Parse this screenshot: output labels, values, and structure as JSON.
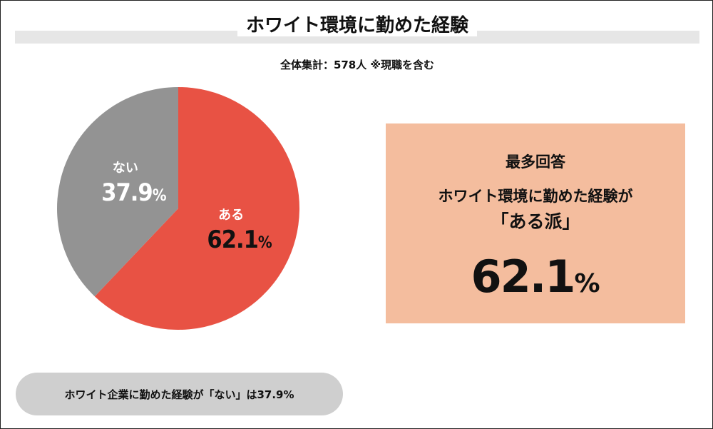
{
  "title": "ホワイト環境に勤めた経験",
  "subtitle": "全体集計：578人 ※現職を含む",
  "chart_data": {
    "type": "pie",
    "slices": [
      {
        "label": "ある",
        "value": 62.1,
        "display": "62.1",
        "unit": "%",
        "color": "#e85244"
      },
      {
        "label": "ない",
        "value": 37.9,
        "display": "37.9",
        "unit": "%",
        "color": "#939393"
      }
    ],
    "start": "top, clockwise"
  },
  "highlight": {
    "heading": "最多回答",
    "line1": "ホワイト環境に勤めた経験が",
    "line2": "「ある派」",
    "value": "62.1",
    "unit": "%"
  },
  "note": "ホワイト企業に勤めた経験が「ない」は37.9%"
}
